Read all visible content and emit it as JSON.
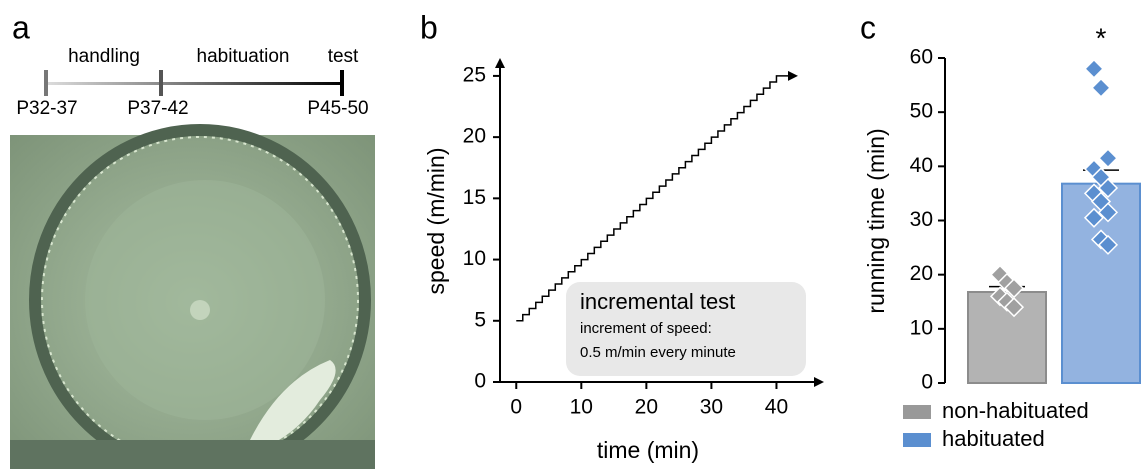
{
  "panel_a": {
    "letter": "a",
    "phases": [
      "handling",
      "habituation",
      "test"
    ],
    "ages": [
      "P32-37",
      "P37-42",
      "P45-50"
    ]
  },
  "chart_data": [
    {
      "type": "step",
      "letter": "b",
      "xlabel": "time (min)",
      "ylabel": "speed (m/min)",
      "annotation": {
        "title": "incremental test",
        "lines": [
          "increment of speed:",
          "0.5 m/min every minute"
        ]
      },
      "x": [
        0,
        1,
        2,
        3,
        4,
        5,
        6,
        7,
        8,
        9,
        10,
        11,
        12,
        13,
        14,
        15,
        16,
        17,
        18,
        19,
        20,
        21,
        22,
        23,
        24,
        25,
        26,
        27,
        28,
        29,
        30,
        31,
        32,
        33,
        34,
        35,
        36,
        37,
        38,
        39,
        40,
        41,
        42,
        43
      ],
      "values": [
        5,
        5.5,
        6,
        6.5,
        7,
        7.5,
        8,
        8.5,
        9,
        9.5,
        10,
        10.5,
        11,
        11.5,
        12,
        12.5,
        13,
        13.5,
        14,
        14.5,
        15,
        15.5,
        16,
        16.5,
        17,
        17.5,
        18,
        18.5,
        19,
        19.5,
        20,
        20.5,
        21,
        21.5,
        22,
        22.5,
        23,
        23.5,
        24,
        24.5,
        25,
        25,
        25,
        25
      ],
      "color": "#000000",
      "xlim": [
        -2.5,
        47
      ],
      "xticks": [
        0,
        10,
        20,
        30,
        40
      ],
      "ylim": [
        0,
        26.3
      ],
      "yticks": [
        0,
        5,
        10,
        15,
        20,
        25
      ]
    },
    {
      "type": "bar",
      "letter": "c",
      "ylabel": "running time (min)",
      "annotation": "*",
      "ylim": [
        0,
        60
      ],
      "yticks": [
        0,
        10,
        20,
        30,
        40,
        50,
        60
      ],
      "series": [
        {
          "name": "non-habituated",
          "color": "#b3b3b3",
          "edge": "#8c8c8c",
          "point_color": "#a0a0a0",
          "values": [
            16.8
          ],
          "errors": [
            1.0
          ],
          "points": [
            20,
            18.5,
            17.5,
            16,
            15,
            14
          ]
        },
        {
          "name": "habituated",
          "color": "#93b3e0",
          "edge": "#5b8fd0",
          "point_color": "#5b8fd0",
          "values": [
            36.8
          ],
          "errors": [
            2.5
          ],
          "points": [
            58,
            54.5,
            41.5,
            39.5,
            38,
            36,
            35,
            33.5,
            31.5,
            30.5,
            26.5,
            25.5
          ]
        }
      ]
    }
  ]
}
